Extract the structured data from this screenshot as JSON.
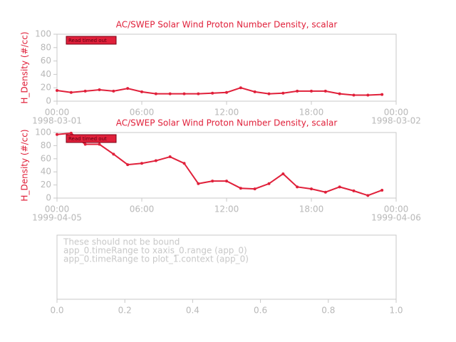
{
  "chart_data": [
    {
      "type": "line",
      "title": "AC/SWEP  Solar Wind Proton Number Density, scalar",
      "ylabel": "H_Density (#/cc)",
      "annotation": "Read timed out",
      "color": "#e0203a",
      "x": [
        0,
        1,
        2,
        3,
        4,
        5,
        6,
        7,
        8,
        9,
        10,
        11,
        12,
        13,
        14,
        15,
        16,
        17,
        18,
        19,
        20,
        21,
        22,
        23
      ],
      "values": [
        16,
        13,
        15,
        17,
        15,
        19,
        14,
        11,
        11,
        11,
        11,
        12,
        13,
        20,
        14,
        11,
        12,
        15,
        15,
        15,
        11,
        9,
        9,
        10
      ],
      "xlim": [
        0,
        24
      ],
      "xticks": [
        {
          "value": 0,
          "label": "00:00"
        },
        {
          "value": 6,
          "label": "06:00"
        },
        {
          "value": 12,
          "label": "12:00"
        },
        {
          "value": 18,
          "label": "18:00"
        },
        {
          "value": 24,
          "label": "00:00"
        }
      ],
      "xtick_dates": [
        {
          "value": 0,
          "label": "1998-03-01"
        },
        {
          "value": 24,
          "label": "1998-03-02"
        }
      ],
      "ylim": [
        0,
        100
      ],
      "yticks": [
        0,
        20,
        40,
        60,
        80,
        100
      ]
    },
    {
      "type": "line",
      "title": "AC/SWEP  Solar Wind Proton Number Density, scalar",
      "ylabel": "H_Density (#/cc)",
      "annotation": "Read timed out",
      "color": "#e0203a",
      "x": [
        0,
        1,
        2,
        3,
        4,
        5,
        6,
        7,
        8,
        9,
        10,
        11,
        12,
        13,
        14,
        15,
        16,
        17,
        18,
        19,
        20,
        21,
        22,
        23
      ],
      "values": [
        97,
        99,
        82,
        82,
        67,
        51,
        53,
        57,
        63,
        53,
        22,
        26,
        26,
        15,
        14,
        22,
        37,
        17,
        14,
        9,
        17,
        11,
        4,
        12
      ],
      "xlim": [
        0,
        24
      ],
      "xticks": [
        {
          "value": 0,
          "label": "00:00"
        },
        {
          "value": 6,
          "label": "06:00"
        },
        {
          "value": 12,
          "label": "12:00"
        },
        {
          "value": 18,
          "label": "18:00"
        },
        {
          "value": 24,
          "label": "00:00"
        }
      ],
      "xtick_dates": [
        {
          "value": 0,
          "label": "1999-04-05"
        },
        {
          "value": 24,
          "label": "1999-04-06"
        }
      ],
      "ylim": [
        0,
        100
      ],
      "yticks": [
        0,
        20,
        40,
        60,
        80,
        100
      ]
    },
    {
      "type": "empty",
      "annotations": [
        "These should not be bound",
        "app_0.timeRange to xaxis_0.range  (app_0)",
        "app_0.timeRange to plot_1.context  (app_0)"
      ],
      "xlim": [
        0,
        1
      ],
      "xticks": [
        {
          "value": 0,
          "label": "0.0"
        },
        {
          "value": 0.2,
          "label": "0.2"
        },
        {
          "value": 0.4,
          "label": "0.4"
        },
        {
          "value": 0.6,
          "label": "0.6"
        },
        {
          "value": 0.8,
          "label": "0.8"
        },
        {
          "value": 1,
          "label": "1.0"
        }
      ]
    }
  ]
}
